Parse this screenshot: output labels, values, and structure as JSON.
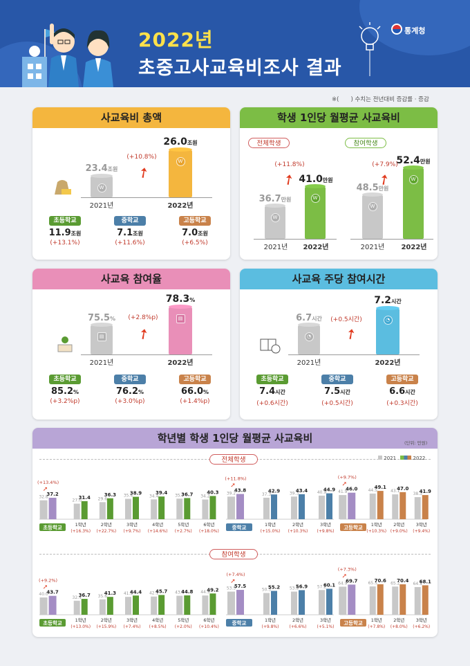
{
  "header": {
    "title_year": "2022년",
    "title_main": "초중고사교육비조사 결과",
    "org": "통계청"
  },
  "note": "※(　　) 수치는 전년대비 증감률 · 증감",
  "total": {
    "title": "사교육비 총액",
    "y2021": "23.4",
    "y2022": "26.0",
    "unit": "조원",
    "change": "(+10.8%)",
    "label2021": "2021년",
    "label2022": "2022년",
    "subs": [
      {
        "name": "초등학교",
        "val": "11.9",
        "unit": "조원",
        "chg": "(+13.1%)"
      },
      {
        "name": "중학교",
        "val": "7.1",
        "unit": "조원",
        "chg": "(+11.6%)"
      },
      {
        "name": "고등학교",
        "val": "7.0",
        "unit": "조원",
        "chg": "(+6.5%)"
      }
    ]
  },
  "percap": {
    "title": "학생 1인당 월평균 사교육비",
    "all": {
      "tag": "전체학생",
      "y2021": "36.7",
      "y2022": "41.0",
      "unit": "만원",
      "change": "(+11.8%)"
    },
    "part": {
      "tag": "참여학생",
      "y2021": "48.5",
      "y2022": "52.4",
      "unit": "만원",
      "change": "(+7.9%)"
    },
    "label2021": "2021년",
    "label2022": "2022년"
  },
  "rate": {
    "title": "사교육 참여율",
    "y2021": "75.5",
    "y2022": "78.3",
    "unit": "%",
    "change": "(+2.8%p)",
    "label2021": "2021년",
    "label2022": "2022년",
    "subs": [
      {
        "name": "초등학교",
        "val": "85.2",
        "unit": "%",
        "chg": "(+3.2%p)"
      },
      {
        "name": "중학교",
        "val": "76.2",
        "unit": "%",
        "chg": "(+3.0%p)"
      },
      {
        "name": "고등학교",
        "val": "66.0",
        "unit": "%",
        "chg": "(+1.4%p)"
      }
    ]
  },
  "hours": {
    "title": "사교육 주당 참여시간",
    "y2021": "6.7",
    "y2022": "7.2",
    "unit": "시간",
    "change": "(+0.5시간)",
    "label2021": "2021년",
    "label2022": "2022년",
    "subs": [
      {
        "name": "초등학교",
        "val": "7.4",
        "unit": "시간",
        "chg": "(+0.6시간)"
      },
      {
        "name": "중학교",
        "val": "7.5",
        "unit": "시간",
        "chg": "(+0.5시간)"
      },
      {
        "name": "고등학교",
        "val": "6.6",
        "unit": "시간",
        "chg": "(+0.3시간)"
      }
    ]
  },
  "grade": {
    "title": "학년별 학생 1인당 월평균 사교육비",
    "unit_note": "(단위: 만원)",
    "legend": [
      "2021",
      "2022"
    ],
    "sec_all": "전체학생",
    "sec_part": "참여학생"
  },
  "colors": {
    "orange": "#f4b63e",
    "green": "#7cbd45",
    "pink": "#e98fb8",
    "sky": "#5bbde0",
    "purple": "#a48dc4",
    "elem": "#5a9b32",
    "mid": "#4c7fa8",
    "high": "#c9824a",
    "gray": "#c8c8c8"
  },
  "chart_data": [
    {
      "type": "bar",
      "title": "사교육비 총액",
      "categories": [
        "2021",
        "2022"
      ],
      "values": [
        23.4,
        26.0
      ],
      "unit": "조원"
    },
    {
      "type": "bar",
      "title": "학생 1인당 월평균 사교육비",
      "categories": [
        "2021",
        "2022"
      ],
      "series": [
        {
          "name": "전체학생",
          "values": [
            36.7,
            41.0
          ]
        },
        {
          "name": "참여학생",
          "values": [
            48.5,
            52.4
          ]
        }
      ],
      "unit": "만원"
    },
    {
      "type": "bar",
      "title": "사교육 참여율",
      "categories": [
        "2021",
        "2022"
      ],
      "values": [
        75.5,
        78.3
      ],
      "unit": "%"
    },
    {
      "type": "bar",
      "title": "사교육 주당 참여시간",
      "categories": [
        "2021",
        "2022"
      ],
      "values": [
        6.7,
        7.2
      ],
      "unit": "시간"
    },
    {
      "type": "bar",
      "title": "학년별 학생 1인당 월평균 사교육비",
      "section": "전체학생",
      "groups": [
        {
          "school": "초등학교",
          "color": "elem",
          "items": [
            {
              "label": "",
              "v21": 32.8,
              "v22": 37.2,
              "chg": "(+13.4%)"
            },
            {
              "label": "1학년",
              "v21": 27.0,
              "v22": 31.4,
              "chg": "(+16.3%)"
            },
            {
              "label": "2학년",
              "v21": 29.6,
              "v22": 36.3,
              "chg": "(+22.7%)"
            },
            {
              "label": "3학년",
              "v21": 35.4,
              "v22": 38.9,
              "chg": "(+9.7%)"
            },
            {
              "label": "4학년",
              "v21": 34.4,
              "v22": 39.4,
              "chg": "(+14.6%)"
            },
            {
              "label": "5학년",
              "v21": 35.7,
              "v22": 36.7,
              "chg": "(+2.7%)"
            },
            {
              "label": "6학년",
              "v21": 34.2,
              "v22": 40.3,
              "chg": "(+18.0%)"
            }
          ]
        },
        {
          "school": "중학교",
          "color": "mid",
          "items": [
            {
              "label": "",
              "v21": 39.2,
              "v22": 43.8,
              "chg": "(+11.8%)"
            },
            {
              "label": "1학년",
              "v21": 37.3,
              "v22": 42.9,
              "chg": "(+15.0%)"
            },
            {
              "label": "2학년",
              "v21": 39.3,
              "v22": 43.4,
              "chg": "(+10.3%)"
            },
            {
              "label": "3학년",
              "v21": 40.9,
              "v22": 44.9,
              "chg": "(+9.8%)"
            }
          ]
        },
        {
          "school": "고등학교",
          "color": "high",
          "items": [
            {
              "label": "",
              "v21": 41.9,
              "v22": 46.0,
              "chg": "(+9.7%)"
            },
            {
              "label": "1학년",
              "v21": 44.5,
              "v22": 49.1,
              "chg": "(+10.3%)"
            },
            {
              "label": "2학년",
              "v21": 43.1,
              "v22": 47.0,
              "chg": "(+9.0%)"
            },
            {
              "label": "3학년",
              "v21": 38.3,
              "v22": 41.9,
              "chg": "(+9.4%)"
            }
          ]
        }
      ]
    },
    {
      "type": "bar",
      "title": "학년별 학생 1인당 월평균 사교육비",
      "section": "참여학생",
      "groups": [
        {
          "school": "초등학교",
          "color": "elem",
          "items": [
            {
              "label": "",
              "v21": 40.0,
              "v22": 43.7,
              "chg": "(+9.2%)"
            },
            {
              "label": "1학년",
              "v21": 32.4,
              "v22": 36.7,
              "chg": "(+13.0%)"
            },
            {
              "label": "2학년",
              "v21": 35.6,
              "v22": 41.3,
              "chg": "(+15.9%)"
            },
            {
              "label": "3학년",
              "v21": 41.3,
              "v22": 44.4,
              "chg": "(+7.4%)"
            },
            {
              "label": "4학년",
              "v21": 42.1,
              "v22": 45.7,
              "chg": "(+8.5%)"
            },
            {
              "label": "5학년",
              "v21": 43.9,
              "v22": 44.8,
              "chg": "(+2.0%)"
            },
            {
              "label": "6학년",
              "v21": 44.5,
              "v22": 49.2,
              "chg": "(+10.4%)"
            }
          ]
        },
        {
          "school": "중학교",
          "color": "mid",
          "items": [
            {
              "label": "",
              "v21": 53.5,
              "v22": 57.5,
              "chg": "(+7.4%)"
            },
            {
              "label": "1학년",
              "v21": 50.3,
              "v22": 55.2,
              "chg": "(+9.8%)"
            },
            {
              "label": "2학년",
              "v21": 53.5,
              "v22": 56.9,
              "chg": "(+6.6%)"
            },
            {
              "label": "3학년",
              "v21": 57.2,
              "v22": 60.1,
              "chg": "(+5.1%)"
            }
          ]
        },
        {
          "school": "고등학교",
          "color": "high",
          "items": [
            {
              "label": "",
              "v21": 64.9,
              "v22": 69.7,
              "chg": "(+7.3%)"
            },
            {
              "label": "1학년",
              "v21": 65.5,
              "v22": 70.6,
              "chg": "(+7.8%)"
            },
            {
              "label": "2학년",
              "v21": 65.2,
              "v22": 70.4,
              "chg": "(+8.0%)"
            },
            {
              "label": "3학년",
              "v21": 64.1,
              "v22": 68.1,
              "chg": "(+6.2%)"
            }
          ]
        }
      ]
    }
  ]
}
